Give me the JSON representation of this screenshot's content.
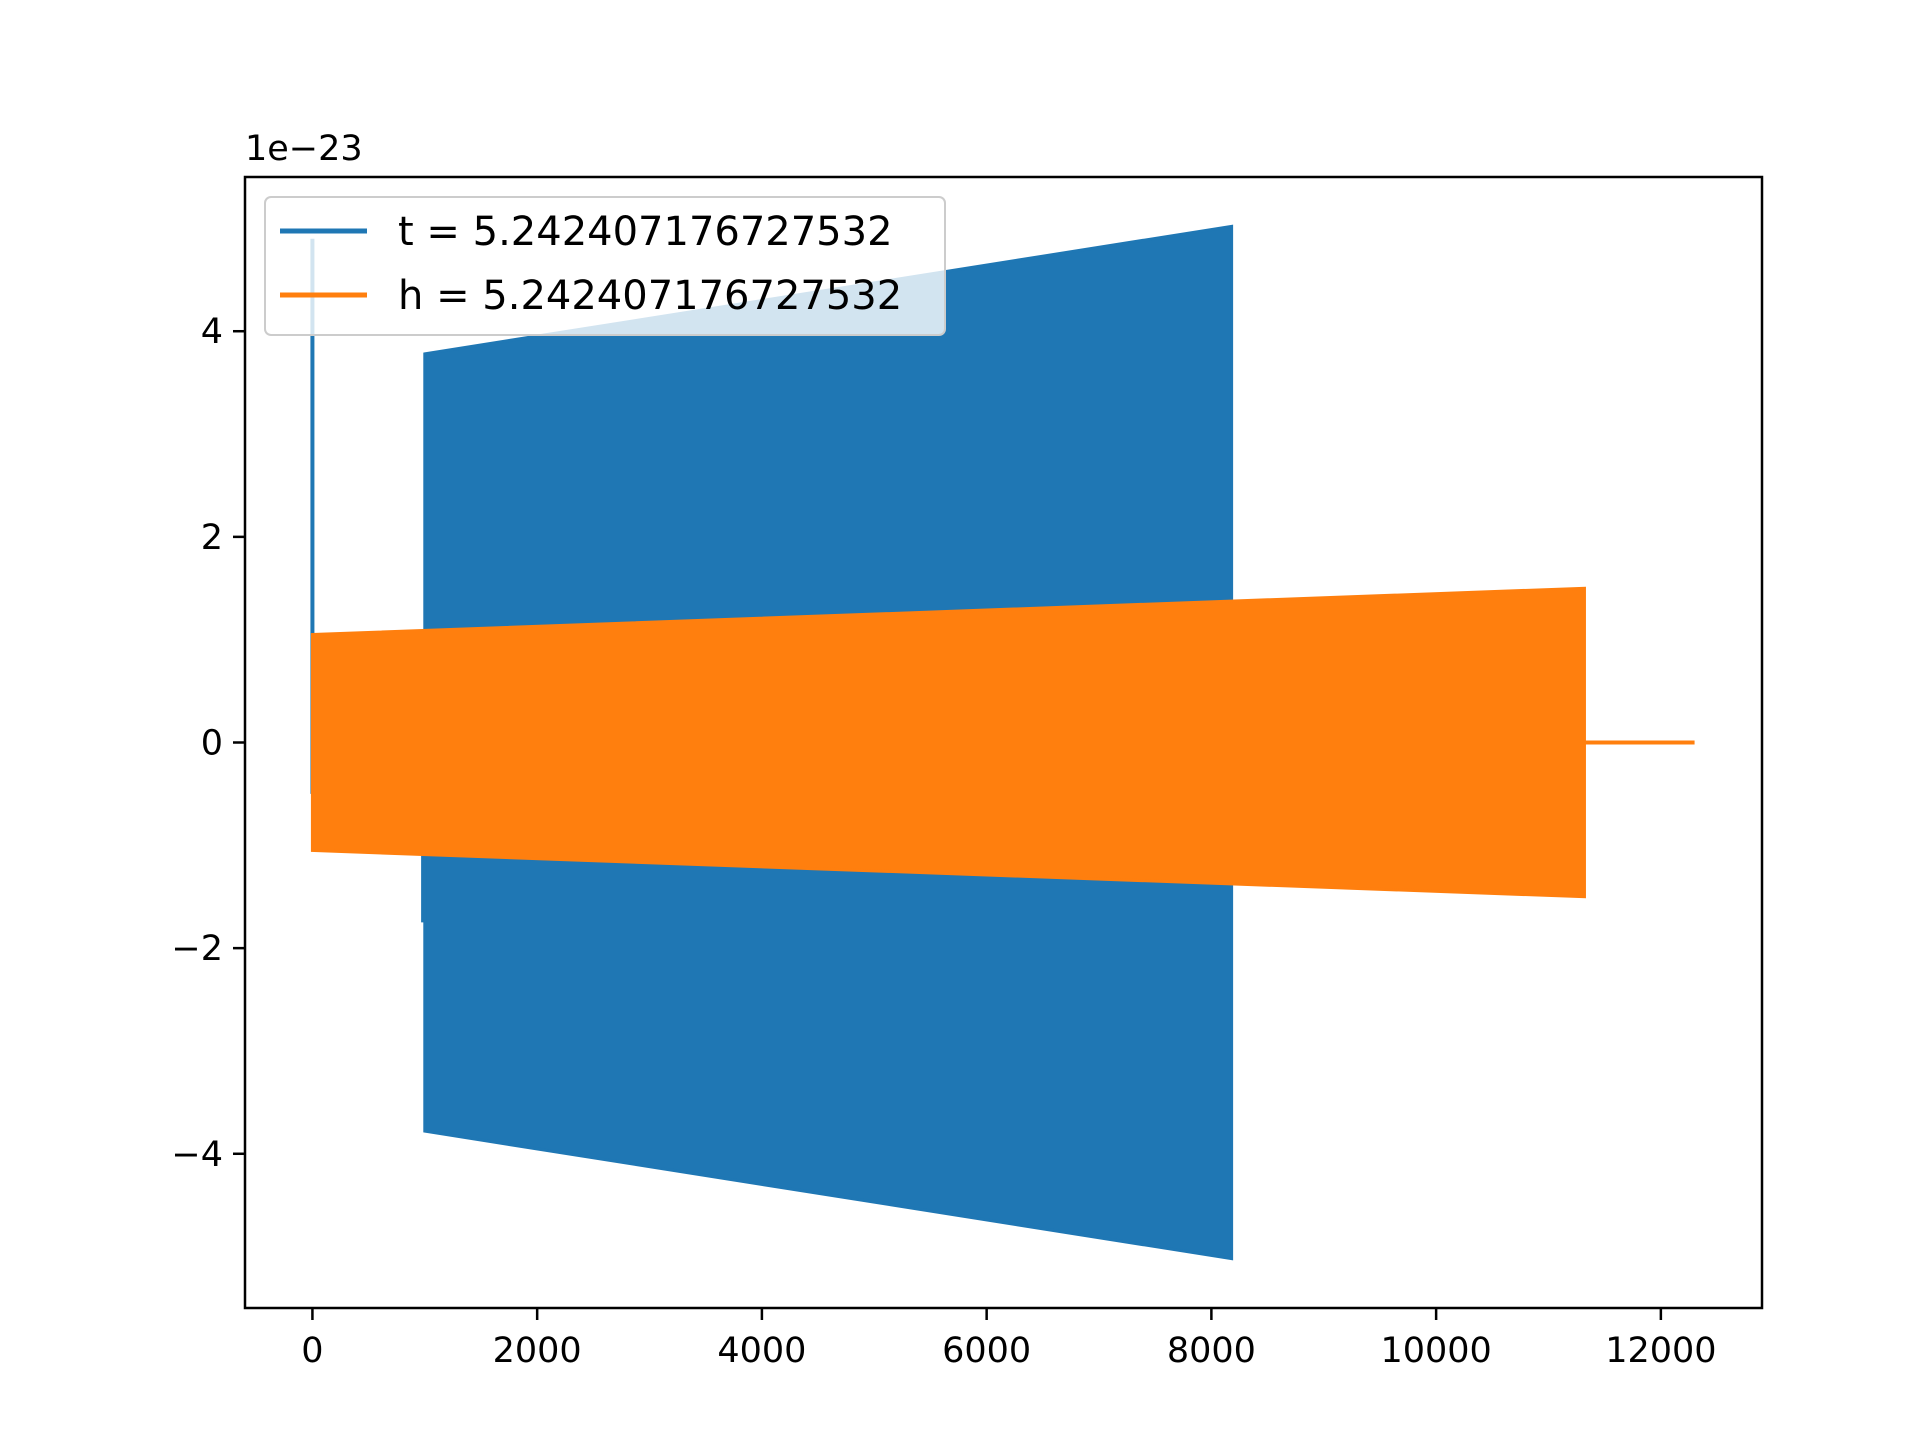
{
  "chart_data": {
    "type": "line",
    "title": "",
    "xlabel": "",
    "ylabel": "",
    "y_offset_label": "1e−23",
    "xlim": [
      -600,
      12900
    ],
    "ylim": [
      -5.5,
      5.5
    ],
    "x_ticks": [
      0,
      2000,
      4000,
      6000,
      8000,
      10000,
      12000
    ],
    "x_tick_labels": [
      "0",
      "2000",
      "4000",
      "6000",
      "8000",
      "10000",
      "12000"
    ],
    "y_ticks": [
      4,
      2,
      0,
      -2,
      -4
    ],
    "y_tick_labels": [
      "4",
      "2",
      "0",
      "−2",
      "−4"
    ],
    "grid": false,
    "legend_position": "top-left",
    "series": [
      {
        "name": "t = 5.242407176727532",
        "color": "#1f77b4",
        "spike": {
          "x": 0,
          "y_max": 4.9,
          "y_min": -0.5
        },
        "envelope": {
          "x": [
            0,
            20,
            980,
            1000,
            8180,
            8200
          ],
          "upper": [
            0.0,
            0.0,
            0.0,
            3.78,
            5.02,
            0.0
          ],
          "lower": [
            0.0,
            0.0,
            0.0,
            -3.78,
            -5.02,
            0.0
          ],
          "onset_dip": {
            "x": 985,
            "y": -1.75
          }
        }
      },
      {
        "name": "h = 5.242407176727532",
        "color": "#ff7f0e",
        "envelope": {
          "x": [
            0,
            11320,
            11330,
            12300
          ],
          "upper": [
            1.05,
            1.5,
            0.0,
            0.0
          ],
          "lower": [
            -1.05,
            -1.5,
            0.0,
            0.0
          ]
        }
      }
    ]
  }
}
